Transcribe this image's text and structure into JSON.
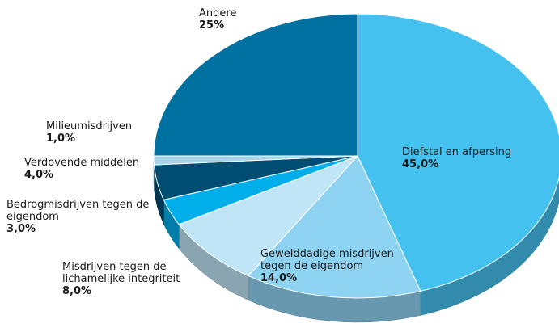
{
  "chart_data": {
    "type": "pie",
    "categories": [
      "Diefstal en afpersing",
      "Gewelddadige misdrijven tegen de eigendom",
      "Misdrijven tegen de lichamelijke integriteit",
      "Bedrogmisdrijven tegen de eigendom",
      "Verdovende middelen",
      "Milieumisdrijven",
      "Andere"
    ],
    "values": [
      45,
      14,
      8,
      3,
      4,
      1,
      25
    ],
    "value_labels": [
      "45,0%",
      "14,0%",
      "8,0%",
      "3,0%",
      "4,0%",
      "1,0%",
      "25%"
    ],
    "colors": [
      "#45c1ef",
      "#8fd3f3",
      "#c0e5f6",
      "#00aee9",
      "#004d73",
      "#a9d3e6",
      "#0071a0"
    ]
  }
}
